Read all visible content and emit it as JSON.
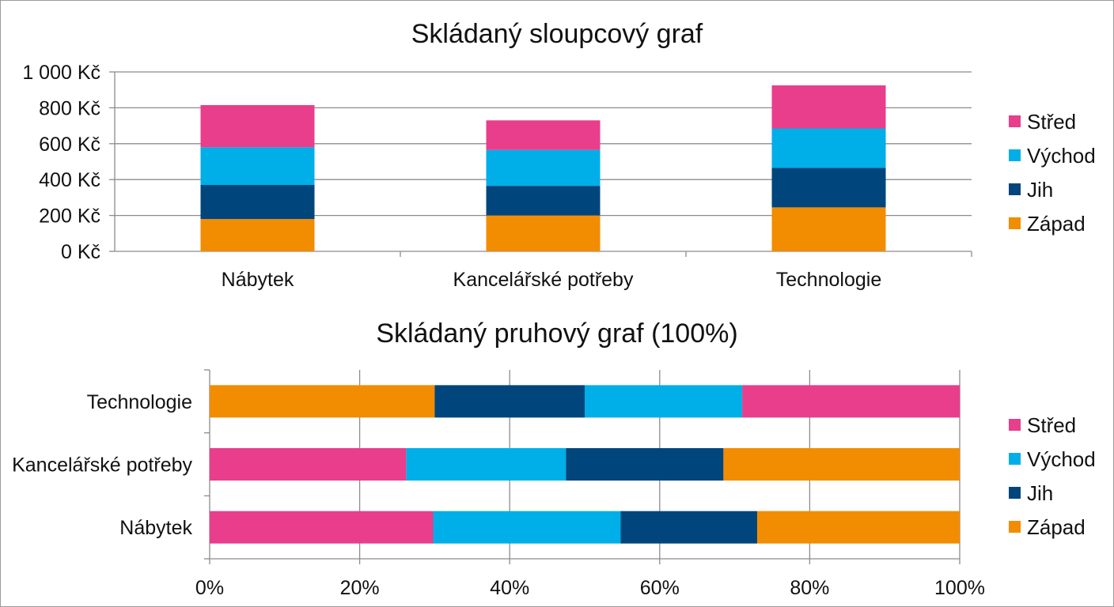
{
  "chart_data": [
    {
      "type": "bar",
      "orientation": "vertical",
      "stacked": true,
      "title": "Skládaný sloupcový graf",
      "categories": [
        "Nábytek",
        "Kancelářské potřeby",
        "Technologie"
      ],
      "series": [
        {
          "name": "Západ",
          "color": "#f28c00",
          "values": [
            180,
            200,
            245
          ]
        },
        {
          "name": "Jih",
          "color": "#00457c",
          "values": [
            190,
            165,
            220
          ]
        },
        {
          "name": "Východ",
          "color": "#00aee8",
          "values": [
            210,
            200,
            220
          ]
        },
        {
          "name": "Střed",
          "color": "#e83e8c",
          "values": [
            235,
            165,
            240
          ]
        }
      ],
      "ylim": [
        0,
        1000
      ],
      "yticks": [
        "0 Kč",
        "200 Kč",
        "400 Kč",
        "600 Kč",
        "800 Kč",
        "1 000 Kč"
      ],
      "ytick_values": [
        0,
        200,
        400,
        600,
        800,
        1000
      ],
      "grid": true,
      "legend_position": "right",
      "legend_order": [
        "Střed",
        "Východ",
        "Jih",
        "Západ"
      ]
    },
    {
      "type": "bar",
      "orientation": "horizontal",
      "stacked": true,
      "percent": true,
      "title": "Skládaný pruhový graf (100%)",
      "categories": [
        "Technologie",
        "Kancelářské potřeby",
        "Nábytek"
      ],
      "series": [
        {
          "name": "Západ",
          "color": "#f28c00",
          "values": [
            30,
            31.5,
            27
          ]
        },
        {
          "name": "Jih",
          "color": "#00457c",
          "values": [
            20,
            21,
            18.2
          ]
        },
        {
          "name": "Východ",
          "color": "#00aee8",
          "values": [
            21,
            21.3,
            25
          ]
        },
        {
          "name": "Střed",
          "color": "#e83e8c",
          "values": [
            29,
            26.2,
            29.8
          ]
        }
      ],
      "segment_order": [
        [
          "Západ",
          "Jih",
          "Východ",
          "Střed"
        ],
        [
          "Střed",
          "Východ",
          "Jih",
          "Západ"
        ],
        [
          "Střed",
          "Východ",
          "Jih",
          "Západ"
        ]
      ],
      "xlim": [
        0,
        100
      ],
      "xticks": [
        "0%",
        "20%",
        "40%",
        "60%",
        "80%",
        "100%"
      ],
      "xtick_values": [
        0,
        20,
        40,
        60,
        80,
        100
      ],
      "grid": true,
      "legend_position": "right",
      "legend_order": [
        "Střed",
        "Východ",
        "Jih",
        "Západ"
      ]
    }
  ]
}
